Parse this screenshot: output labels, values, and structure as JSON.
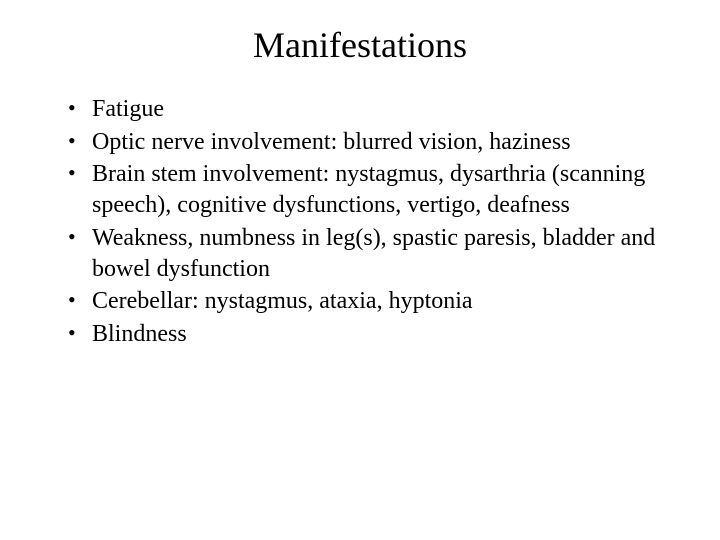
{
  "slide": {
    "title": "Manifestations",
    "bullets": [
      "Fatigue",
      "Optic nerve involvement: blurred vision, haziness",
      "Brain stem involvement: nystagmus, dysarthria (scanning speech), cognitive dysfunctions, vertigo, deafness",
      "Weakness, numbness in leg(s), spastic paresis, bladder and bowel dysfunction",
      "Cerebellar: nystagmus, ataxia, hyptonia",
      "Blindness"
    ],
    "title_fontsize": 36,
    "body_fontsize": 24,
    "font_family": "Times New Roman",
    "text_color": "#000000",
    "background_color": "#ffffff"
  }
}
